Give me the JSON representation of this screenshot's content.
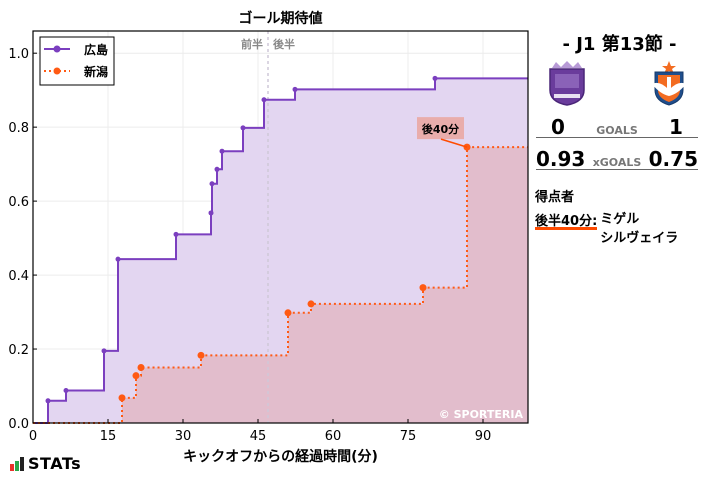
{
  "chart_data": {
    "type": "line",
    "subtype": "step-cumulative",
    "title": "ゴール期待値",
    "xlabel": "キックオフからの経過時間(分)",
    "ylabel": "",
    "xlim": [
      0,
      99
    ],
    "ylim": [
      0,
      1.06
    ],
    "x_ticks": [
      0,
      15,
      30,
      45,
      60,
      75,
      90
    ],
    "y_ticks": [
      0.0,
      0.2,
      0.4,
      0.6,
      0.8,
      1.0
    ],
    "grid": true,
    "legend_position": "upper left",
    "half_marker": {
      "x": 47,
      "labels": [
        "前半",
        "後半"
      ]
    },
    "series": [
      {
        "name": "広島",
        "color": "#7b3fbf",
        "line_style": "solid",
        "fill": "#e3d6f1",
        "x": [
          3.0,
          6.6,
          14.2,
          17.0,
          28.6,
          35.6,
          35.8,
          36.8,
          37.8,
          42.0,
          46.2,
          52.4,
          80.4
        ],
        "y": [
          0.06,
          0.088,
          0.195,
          0.443,
          0.51,
          0.568,
          0.647,
          0.686,
          0.735,
          0.798,
          0.874,
          0.902,
          0.932
        ],
        "final": 0.93
      },
      {
        "name": "新潟",
        "color": "#ff5a14",
        "line_style": "dotted",
        "fill": "#e2b9c6",
        "x": [
          17.8,
          20.6,
          21.6,
          33.6,
          51.0,
          55.6,
          78.0,
          86.8
        ],
        "y": [
          0.068,
          0.128,
          0.15,
          0.183,
          0.298,
          0.322,
          0.366,
          0.746
        ],
        "final": 0.75
      }
    ],
    "annotations": [
      {
        "text": "後40分",
        "x": 86.8,
        "y": 0.746,
        "series": "新潟"
      },
      {
        "text": "© SPORTERIA",
        "position": "bottom-right"
      }
    ]
  },
  "header": {
    "round": "- J1 第13節 -"
  },
  "teams": {
    "home": {
      "name": "広島",
      "goals": "0",
      "xg": "0.93",
      "crest_color": "#6a3c9c"
    },
    "away": {
      "name": "新潟",
      "goals": "1",
      "xg": "0.75",
      "crest_color": "#f36c21"
    }
  },
  "labels": {
    "goals": "GOALS",
    "xgoals": "xGOALS"
  },
  "scorers": {
    "title": "得点者",
    "items": [
      {
        "time": "後半40分:",
        "name_line1": "ミゲル",
        "name_line2": "シルヴェイラ"
      }
    ]
  },
  "branding": {
    "stats": "STATs",
    "copyright": "© SPORTERIA"
  }
}
